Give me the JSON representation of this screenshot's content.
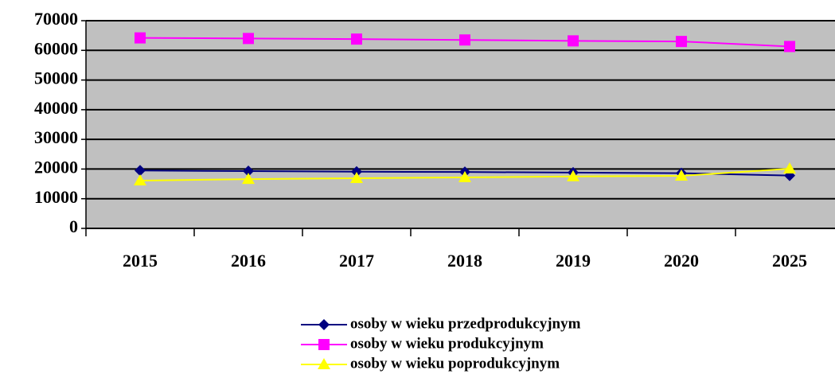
{
  "chart_data": {
    "type": "line",
    "categories": [
      "2015",
      "2016",
      "2017",
      "2018",
      "2019",
      "2020",
      "2025"
    ],
    "series": [
      {
        "name": "osoby w wieku przedprodukcyjnym",
        "color": "#000080",
        "marker": "diamond",
        "values": [
          19500,
          19300,
          19100,
          19000,
          18800,
          18600,
          17800
        ]
      },
      {
        "name": "osoby w wieku produkcyjnym",
        "color": "#ff00ff",
        "marker": "square",
        "values": [
          64200,
          64000,
          63800,
          63500,
          63200,
          63000,
          61300
        ]
      },
      {
        "name": "osoby w wieku poprodukcyjnym",
        "color": "#ffff00",
        "marker": "triangle",
        "values": [
          16100,
          16600,
          16900,
          17200,
          17500,
          17700,
          20100
        ]
      }
    ],
    "ylim": [
      0,
      70000
    ],
    "yticks": [
      0,
      10000,
      20000,
      30000,
      40000,
      50000,
      60000,
      70000
    ],
    "grid": true,
    "legend": "bottom"
  }
}
